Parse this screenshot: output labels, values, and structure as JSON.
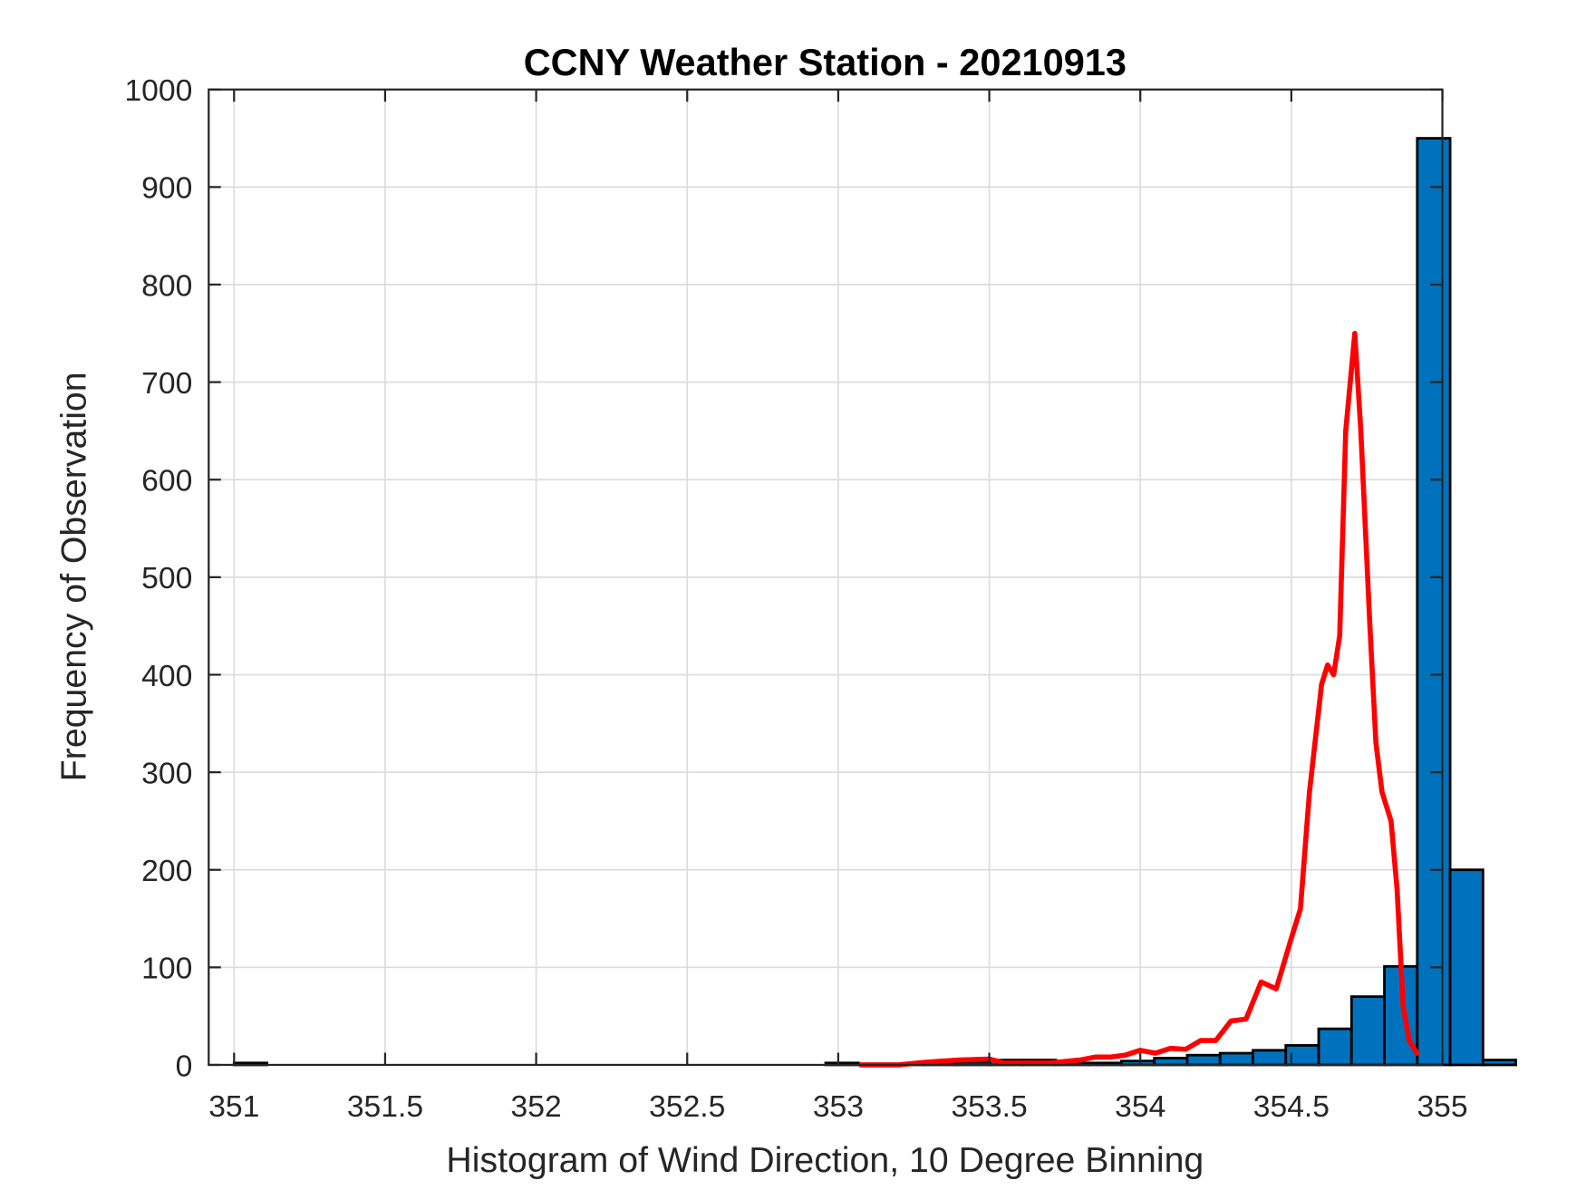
{
  "chart_data": {
    "type": "bar",
    "title": "CCNY Weather Station - 20210913",
    "xlabel": "Histogram of Wind Direction, 10 Degree Binning",
    "ylabel": "Frequency of Observation",
    "xlim": [
      350.916,
      355
    ],
    "ylim": [
      0,
      1000
    ],
    "xticks": [
      "351",
      "351.5",
      "352",
      "352.5",
      "353",
      "353.5",
      "354",
      "354.5",
      "355"
    ],
    "yticks": [
      "0",
      "100",
      "200",
      "300",
      "400",
      "500",
      "600",
      "700",
      "800",
      "900",
      "1000"
    ],
    "grid": true,
    "bin_start": 351,
    "bin_width": 0.1088,
    "bin_counts": [
      2,
      0,
      0,
      0,
      0,
      0,
      0,
      0,
      0,
      0,
      0,
      0,
      0,
      0,
      0,
      0,
      0,
      0,
      2,
      1,
      1,
      2,
      3,
      5,
      5,
      2,
      2,
      4,
      7,
      10,
      12,
      15,
      20,
      37,
      70,
      101,
      950,
      200,
      5
    ],
    "bar_color": "#0072BD",
    "curve": {
      "color": "#FF0000",
      "x": [
        353.07,
        353.2,
        353.3,
        353.4,
        353.5,
        353.55,
        353.7,
        353.8,
        353.85,
        353.9,
        353.95,
        354.0,
        354.05,
        354.1,
        354.15,
        354.2,
        354.25,
        354.3,
        354.35,
        354.4,
        354.45,
        354.5,
        354.53,
        354.56,
        354.6,
        354.62,
        354.64,
        354.66,
        354.68,
        354.71,
        354.73,
        354.76,
        354.78,
        354.8,
        354.83,
        354.85,
        354.87,
        354.89,
        354.92
      ],
      "y": [
        0,
        0,
        3,
        5,
        6,
        2,
        2,
        5,
        8,
        8,
        10,
        15,
        12,
        17,
        16,
        25,
        25,
        45,
        47,
        85,
        78,
        130,
        160,
        280,
        390,
        410,
        400,
        440,
        650,
        750,
        650,
        450,
        330,
        280,
        250,
        180,
        60,
        25,
        10
      ]
    }
  }
}
